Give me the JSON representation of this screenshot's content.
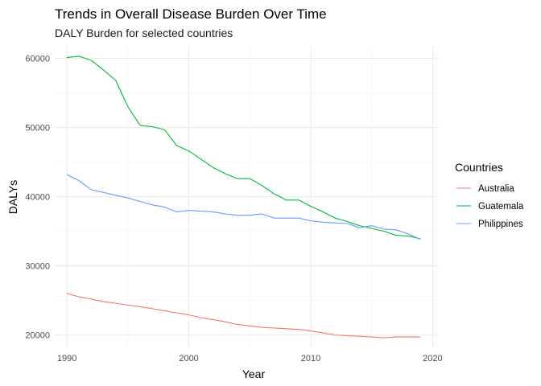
{
  "chart_data": {
    "type": "line",
    "title": "Trends in Overall Disease Burden Over Time",
    "subtitle": "DALY Burden for selected countries",
    "xlabel": "Year",
    "ylabel": "DALYs",
    "xlim": [
      1989,
      2020.5
    ],
    "ylim": [
      18200,
      61800
    ],
    "x_ticks": [
      1990,
      2000,
      2010,
      2020
    ],
    "y_ticks": [
      20000,
      30000,
      40000,
      50000,
      60000
    ],
    "grid": true,
    "legend": {
      "title": "Countries",
      "position": "right"
    },
    "x": [
      1990,
      1991,
      1992,
      1993,
      1994,
      1995,
      1996,
      1997,
      1998,
      1999,
      2000,
      2001,
      2002,
      2003,
      2004,
      2005,
      2006,
      2007,
      2008,
      2009,
      2010,
      2011,
      2012,
      2013,
      2014,
      2015,
      2016,
      2017,
      2018,
      2019
    ],
    "series": [
      {
        "name": "Australia",
        "color": "#F8766D",
        "values": [
          26000,
          25500,
          25200,
          24800,
          24600,
          24300,
          24100,
          23800,
          23500,
          23200,
          22900,
          22500,
          22200,
          21900,
          21500,
          21300,
          21100,
          21000,
          20900,
          20800,
          20600,
          20300,
          20000,
          19900,
          19800,
          19700,
          19600,
          19700,
          19700,
          19700
        ]
      },
      {
        "name": "Guatemala",
        "color": "#00BA38",
        "values": [
          60100,
          60300,
          59700,
          58300,
          56800,
          53000,
          50300,
          50100,
          49700,
          47400,
          46600,
          45400,
          44200,
          43300,
          42600,
          42600,
          41600,
          40400,
          39500,
          39500,
          38600,
          37800,
          36900,
          36400,
          35800,
          35400,
          35000,
          34400,
          34300,
          33900
        ]
      },
      {
        "name": "Philippines",
        "color": "#619CFF",
        "values": [
          43200,
          42300,
          41000,
          40600,
          40200,
          39800,
          39300,
          38800,
          38500,
          37800,
          38000,
          37900,
          37800,
          37500,
          37300,
          37300,
          37500,
          36900,
          36900,
          36900,
          36500,
          36300,
          36200,
          36100,
          35500,
          35800,
          35300,
          35200,
          34600,
          33800
        ]
      }
    ]
  }
}
